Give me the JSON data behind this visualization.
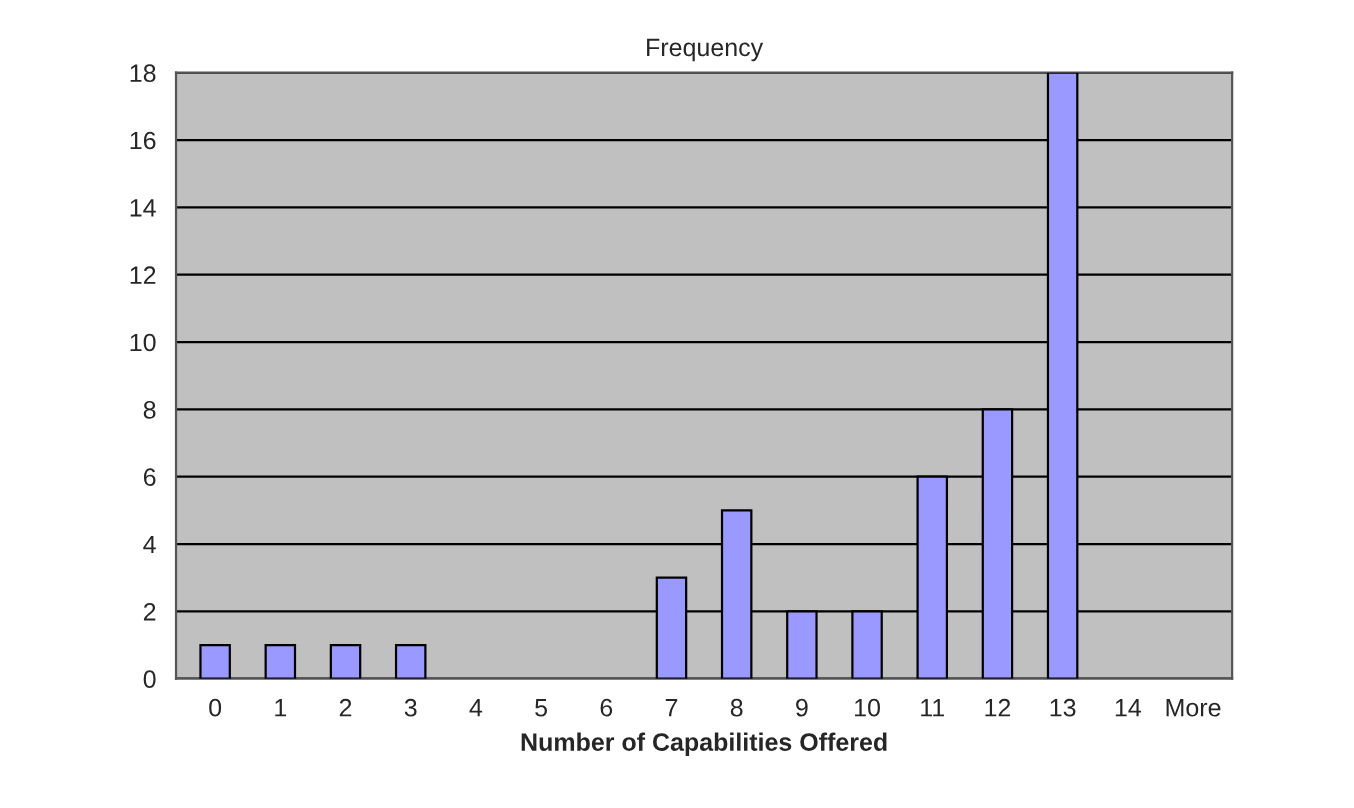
{
  "chart_data": {
    "type": "bar",
    "title": "Frequency",
    "xlabel": "Number of Capabilities Offered",
    "categories": [
      "0",
      "1",
      "2",
      "3",
      "4",
      "5",
      "6",
      "7",
      "8",
      "9",
      "10",
      "11",
      "12",
      "13",
      "14",
      "More"
    ],
    "values": [
      1,
      1,
      1,
      1,
      0,
      0,
      0,
      3,
      5,
      2,
      2,
      6,
      8,
      18,
      0,
      0
    ],
    "color": "#9999ff",
    "ylim": [
      0,
      18
    ],
    "yticks": [
      0,
      2,
      4,
      6,
      8,
      10,
      12,
      14,
      16,
      18
    ],
    "grid": "y"
  }
}
